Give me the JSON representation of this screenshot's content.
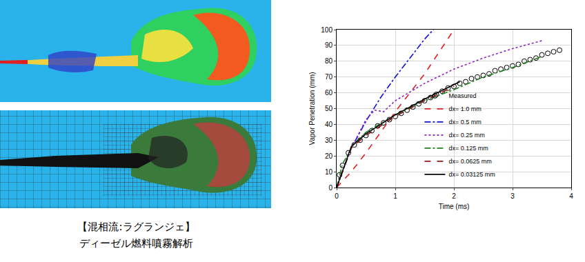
{
  "caption": [
    "【混相流:ラグランジェ】",
    "ディーゼル燃料噴霧解析"
  ],
  "chart_data": {
    "type": "line",
    "x_label": "Time (ms)",
    "y_label": "Vapor Penetration (mm)",
    "xlim": [
      0,
      4
    ],
    "xticks": [
      0,
      1,
      2,
      3,
      4
    ],
    "ylim": [
      0,
      100
    ],
    "yticks": [
      0,
      10,
      20,
      30,
      40,
      50,
      60,
      70,
      80,
      90,
      100
    ],
    "grid": true,
    "legend": "lower right",
    "series": [
      {
        "name": "Measured",
        "type": "scatter",
        "marker": "circle-open",
        "color": "#000000",
        "x": [
          0.05,
          0.1,
          0.2,
          0.3,
          0.4,
          0.5,
          0.6,
          0.7,
          0.8,
          0.9,
          1.0,
          1.1,
          1.2,
          1.3,
          1.4,
          1.5,
          1.6,
          1.7,
          1.8,
          1.9,
          2.0,
          2.1,
          2.2,
          2.3,
          2.4,
          2.5,
          2.6,
          2.7,
          2.8,
          2.9,
          3.0,
          3.1,
          3.2,
          3.3,
          3.4,
          3.5,
          3.6,
          3.7,
          3.8
        ],
        "values": [
          8,
          14,
          22,
          27,
          30,
          33,
          36,
          39,
          41,
          43,
          45,
          47,
          49,
          51,
          53,
          55,
          57,
          59,
          61,
          63,
          64,
          66,
          67,
          69,
          70,
          71,
          72,
          74,
          75,
          76,
          77,
          78,
          80,
          81,
          82,
          84,
          85,
          86,
          87
        ]
      },
      {
        "name": "dx= 1.0 mm",
        "type": "line",
        "line_style": "dash",
        "color": "#e02020",
        "x": [
          0,
          0.25,
          0.5,
          0.75,
          1.0,
          1.25,
          1.5,
          1.75,
          2.0
        ],
        "values": [
          0,
          10,
          22,
          35,
          48,
          60,
          72,
          86,
          100
        ]
      },
      {
        "name": "dx= 0.5 mm",
        "type": "line",
        "line_style": "dashdot",
        "color": "#1010d0",
        "x": [
          0,
          0.25,
          0.5,
          0.75,
          1.0,
          1.25,
          1.5,
          1.65
        ],
        "values": [
          0,
          25,
          42,
          57,
          70,
          82,
          94,
          100
        ]
      },
      {
        "name": "dx= 0.25 mm",
        "type": "line",
        "line_style": "dot",
        "color": "#9020c0",
        "x": [
          0,
          0.25,
          0.5,
          0.65,
          0.8,
          1.0,
          1.5,
          2.0,
          2.5,
          3.0,
          3.5
        ],
        "values": [
          0,
          25,
          43,
          49,
          48,
          55,
          66,
          75,
          82,
          88,
          93
        ]
      },
      {
        "name": "dx= 0.125 mm",
        "type": "line",
        "line_style": "dashdot",
        "color": "#208020",
        "x": [
          0,
          0.1,
          0.3,
          0.5,
          1.0,
          1.5,
          2.0,
          2.5,
          3.0,
          3.5
        ],
        "values": [
          0,
          15,
          28,
          35,
          46,
          55,
          62,
          70,
          76,
          83
        ]
      },
      {
        "name": "dx= 0.0625 mm",
        "type": "line",
        "line_style": "dash",
        "color": "#8b1a1a",
        "x": [
          0,
          0.25,
          0.5,
          1.0,
          1.5,
          2.0
        ],
        "values": [
          0,
          25,
          33,
          45,
          55,
          64
        ]
      },
      {
        "name": "dx= 0.03125 mm",
        "type": "line",
        "line_style": "solid",
        "color": "#000000",
        "x": [
          0,
          0.25,
          0.5,
          1.0,
          1.5,
          2.0,
          2.1
        ],
        "values": [
          0,
          26,
          34,
          46,
          56,
          65,
          67
        ]
      }
    ]
  }
}
